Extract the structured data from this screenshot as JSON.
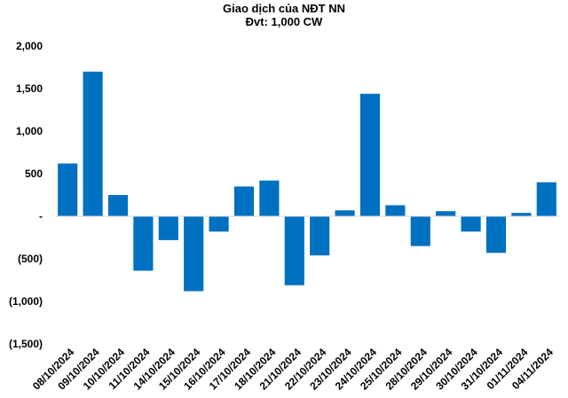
{
  "chart_data": {
    "type": "bar",
    "title": "Giao dịch của NĐT NN",
    "subtitle": "Đvt: 1,000 CW",
    "xlabel": "",
    "ylabel": "",
    "ylim": [
      -1500,
      2000
    ],
    "yticks": [
      -1500,
      -1000,
      -500,
      0,
      500,
      1000,
      1500,
      2000
    ],
    "ytick_labels": [
      "(1,500)",
      "(1,000)",
      "(500)",
      "-",
      "500",
      "1,000",
      "1,500",
      "2,000"
    ],
    "grid": false,
    "legend": "none",
    "bar_color": "#0070C0",
    "categories": [
      "08/10/2024",
      "09/10/2024",
      "10/10/2024",
      "11/10/2024",
      "14/10/2024",
      "15/10/2024",
      "16/10/2024",
      "17/10/2024",
      "18/10/2024",
      "21/10/2024",
      "22/10/2024",
      "23/10/2024",
      "24/10/2024",
      "25/10/2024",
      "28/10/2024",
      "29/10/2024",
      "30/10/2024",
      "31/10/2024",
      "01/11/2024",
      "04/11/2024"
    ],
    "values": [
      620,
      1700,
      250,
      -640,
      -280,
      -880,
      -180,
      350,
      420,
      -810,
      -460,
      70,
      1440,
      130,
      -350,
      60,
      -180,
      -430,
      40,
      400
    ]
  }
}
